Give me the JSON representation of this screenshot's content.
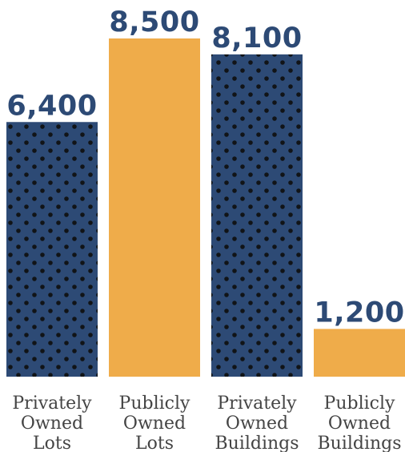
{
  "chart_data": {
    "type": "bar",
    "categories": [
      [
        "Privately",
        "Owned",
        "Lots"
      ],
      [
        "Publicly",
        "Owned",
        "Lots"
      ],
      [
        "Privately",
        "Owned",
        "Buildings"
      ],
      [
        "Publicly",
        "Owned",
        "Buildings"
      ]
    ],
    "values": [
      6400,
      8500,
      8100,
      1200
    ],
    "value_labels": [
      "6,400",
      "8,500",
      "8,100",
      "1,200"
    ],
    "bar_styles": [
      "dotted",
      "solid",
      "dotted",
      "solid"
    ],
    "ylim": [
      0,
      8500
    ],
    "grid": false,
    "title": "",
    "xlabel": "",
    "ylabel": ""
  },
  "colors": {
    "navy": "#2d4a75",
    "orange": "#efac4a",
    "dot": "#111417",
    "label_text": "#444444"
  }
}
